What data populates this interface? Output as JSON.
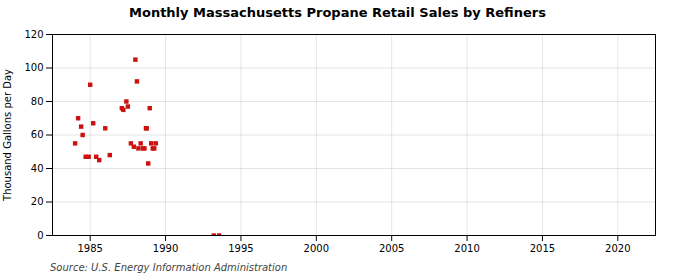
{
  "chart_data": {
    "type": "scatter",
    "title": "Monthly Massachusetts Propane Retail Sales by Refiners",
    "ylabel": "Thousand Gallons per Day",
    "source": "Source: U.S. Energy Information Administration",
    "color": "#cc1111",
    "marker": "square",
    "grid": true,
    "xlim": [
      1982.5,
      2022.5
    ],
    "ylim": [
      0,
      120
    ],
    "xticks": [
      1985,
      1990,
      1995,
      2000,
      2005,
      2010,
      2015,
      2020
    ],
    "yticks": [
      0,
      20,
      40,
      60,
      80,
      100,
      120
    ],
    "x": [
      1984.0,
      1984.2,
      1984.4,
      1984.5,
      1984.7,
      1984.9,
      1985.0,
      1985.2,
      1985.4,
      1985.6,
      1986.0,
      1986.3,
      1987.1,
      1987.2,
      1987.4,
      1987.5,
      1987.7,
      1987.9,
      1988.0,
      1988.1,
      1988.2,
      1988.35,
      1988.5,
      1988.6,
      1988.7,
      1988.75,
      1988.85,
      1988.95,
      1989.05,
      1989.15,
      1989.25,
      1989.35,
      1993.2,
      1993.55
    ],
    "values": [
      55,
      70,
      65,
      60,
      47,
      47,
      90,
      67,
      47,
      45,
      64,
      48,
      76,
      75,
      80,
      77,
      55,
      53,
      105,
      92,
      52,
      55,
      52,
      52,
      64,
      64,
      43,
      76,
      55,
      52,
      52,
      55,
      0,
      0
    ]
  }
}
